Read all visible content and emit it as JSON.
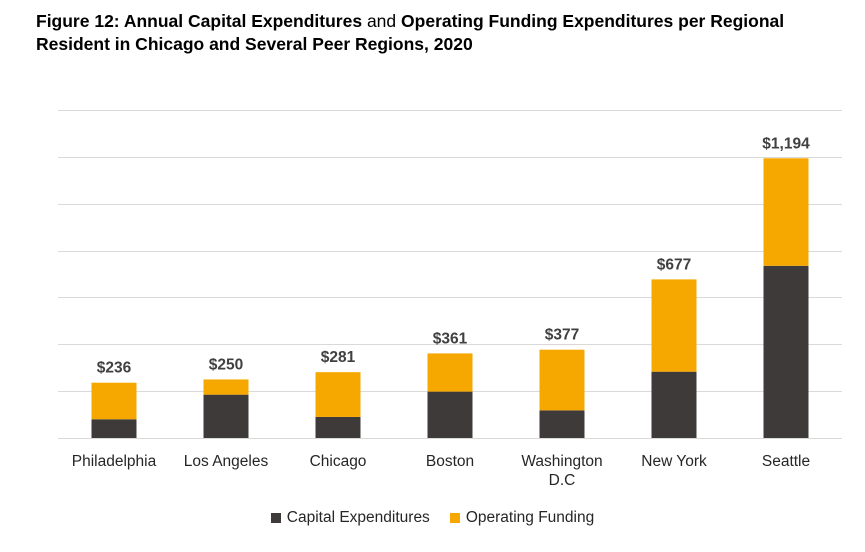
{
  "title": {
    "part1": "Figure 12: Annual Capital Expenditures",
    "part2": "and",
    "part3": "Operating Funding Expenditures per Regional Resident in Chicago and Several Peer Regions, 2020"
  },
  "chart_data": {
    "type": "bar",
    "stacked": true,
    "categories": [
      "Philadelphia",
      "Los Angeles",
      "Chicago",
      "Boston",
      "Washington D.C",
      "New York",
      "Seattle"
    ],
    "category_lines": [
      [
        "Philadelphia"
      ],
      [
        "Los Angeles"
      ],
      [
        "Chicago"
      ],
      [
        "Boston"
      ],
      [
        "Washington",
        "D.C"
      ],
      [
        "New York"
      ],
      [
        "Seattle"
      ]
    ],
    "series": [
      {
        "name": "Capital Expenditures",
        "color": "#3e3a39",
        "values": [
          80,
          185,
          90,
          198,
          118,
          283,
          735
        ]
      },
      {
        "name": "Operating Funding",
        "color": "#f7a800",
        "values": [
          156,
          65,
          191,
          163,
          259,
          394,
          459
        ]
      }
    ],
    "totals": [
      236,
      250,
      281,
      361,
      377,
      677,
      1194
    ],
    "total_labels": [
      "$236",
      "$250",
      "$281",
      "$361",
      "$377",
      "$677",
      "$1,194"
    ],
    "ylim": [
      0,
      1400
    ],
    "ytick_step": 200,
    "grid": true,
    "y_tick_labels_shown": false,
    "legend_position": "bottom-center"
  }
}
